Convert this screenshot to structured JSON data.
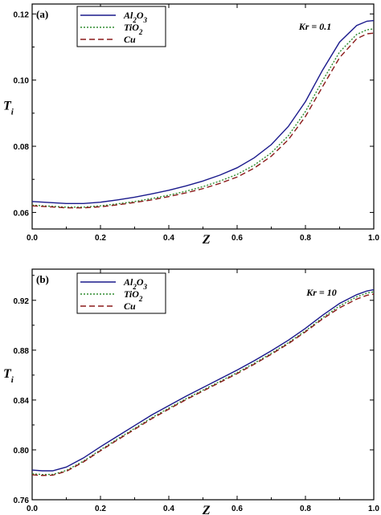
{
  "chart_data": [
    {
      "type": "line",
      "panel_label": "(a)",
      "annotation": "Kr = 0.1",
      "xlabel": "Z",
      "ylabel": "T",
      "ylabel_sub": "i",
      "xlim": [
        0,
        1
      ],
      "ylim": [
        0.055,
        0.123
      ],
      "x_ticks": [
        "0.0",
        "0.2",
        "0.4",
        "0.6",
        "0.8",
        "1.0"
      ],
      "x_tick_values": [
        0,
        0.2,
        0.4,
        0.6,
        0.8,
        1.0
      ],
      "y_ticks": [
        "0.06",
        "0.08",
        "0.10",
        "0.12"
      ],
      "y_tick_values": [
        0.06,
        0.08,
        0.1,
        0.12
      ],
      "legend_position": "top-left",
      "x": [
        0,
        0.05,
        0.1,
        0.15,
        0.2,
        0.25,
        0.3,
        0.35,
        0.4,
        0.45,
        0.5,
        0.55,
        0.6,
        0.65,
        0.7,
        0.75,
        0.8,
        0.85,
        0.9,
        0.95,
        0.98,
        1.0
      ],
      "series": [
        {
          "name": "Al₂O₃",
          "color": "#1a1a8c",
          "dash": "solid",
          "values": [
            0.0633,
            0.063,
            0.0627,
            0.0627,
            0.0631,
            0.0638,
            0.0646,
            0.0656,
            0.0667,
            0.068,
            0.0695,
            0.0713,
            0.0735,
            0.0765,
            0.0805,
            0.086,
            0.0935,
            0.103,
            0.1115,
            0.1165,
            0.1178,
            0.118
          ]
        },
        {
          "name": "TiO₂",
          "color": "#2e8b2e",
          "dash": "dotted",
          "values": [
            0.0622,
            0.0619,
            0.0616,
            0.0616,
            0.062,
            0.0626,
            0.0633,
            0.0642,
            0.0652,
            0.0664,
            0.0678,
            0.0695,
            0.0715,
            0.0743,
            0.078,
            0.0832,
            0.0905,
            0.0998,
            0.1085,
            0.1138,
            0.1152,
            0.1155
          ]
        },
        {
          "name": "Cu",
          "color": "#8b1a1a",
          "dash": "dashed",
          "values": [
            0.062,
            0.0617,
            0.0614,
            0.0614,
            0.0617,
            0.0623,
            0.063,
            0.0638,
            0.0648,
            0.0659,
            0.0672,
            0.0688,
            0.0707,
            0.0734,
            0.077,
            0.082,
            0.089,
            0.098,
            0.1068,
            0.1125,
            0.114,
            0.1142
          ]
        }
      ]
    },
    {
      "type": "line",
      "panel_label": "(b)",
      "annotation": "Kr = 10",
      "xlabel": "Z",
      "ylabel": "T",
      "ylabel_sub": "i",
      "xlim": [
        0,
        1
      ],
      "ylim": [
        0.76,
        0.945
      ],
      "x_ticks": [
        "0.0",
        "0.2",
        "0.4",
        "0.6",
        "0.8",
        "1.0"
      ],
      "x_tick_values": [
        0,
        0.2,
        0.4,
        0.6,
        0.8,
        1.0
      ],
      "y_ticks": [
        "0.76",
        "0.80",
        "0.84",
        "0.88",
        "0.92"
      ],
      "y_tick_values": [
        0.76,
        0.8,
        0.84,
        0.88,
        0.92
      ],
      "legend_position": "top-left",
      "x": [
        0,
        0.03,
        0.06,
        0.1,
        0.15,
        0.2,
        0.25,
        0.3,
        0.35,
        0.4,
        0.45,
        0.5,
        0.55,
        0.6,
        0.65,
        0.7,
        0.75,
        0.8,
        0.85,
        0.9,
        0.95,
        0.98,
        1.0
      ],
      "series": [
        {
          "name": "Al₂O₃",
          "color": "#1a1a8c",
          "dash": "solid",
          "values": [
            0.7838,
            0.7832,
            0.7832,
            0.7862,
            0.7935,
            0.8025,
            0.811,
            0.8195,
            0.828,
            0.8355,
            0.843,
            0.85,
            0.857,
            0.864,
            0.8715,
            0.8795,
            0.888,
            0.8975,
            0.908,
            0.9175,
            0.9245,
            0.9275,
            0.9285
          ]
        },
        {
          "name": "TiO₂",
          "color": "#2e8b2e",
          "dash": "dotted",
          "values": [
            0.7808,
            0.7802,
            0.7803,
            0.7835,
            0.791,
            0.8,
            0.8088,
            0.8173,
            0.8258,
            0.8335,
            0.841,
            0.848,
            0.855,
            0.862,
            0.8695,
            0.8775,
            0.886,
            0.8955,
            0.906,
            0.9155,
            0.9228,
            0.9258,
            0.9268
          ]
        },
        {
          "name": "Cu",
          "color": "#8b1a1a",
          "dash": "dashed",
          "values": [
            0.78,
            0.7795,
            0.7797,
            0.7828,
            0.7903,
            0.7993,
            0.808,
            0.8165,
            0.825,
            0.8327,
            0.8402,
            0.8472,
            0.8542,
            0.8612,
            0.8687,
            0.8767,
            0.8852,
            0.8947,
            0.905,
            0.914,
            0.921,
            0.924,
            0.925
          ]
        }
      ]
    }
  ]
}
